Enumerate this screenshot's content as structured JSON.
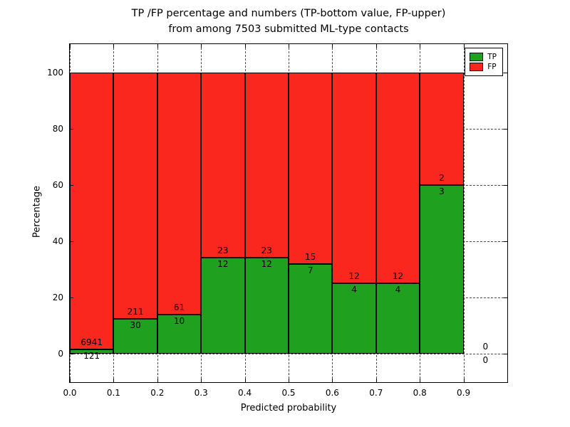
{
  "chart_data": {
    "type": "bar",
    "stacked": true,
    "title_line1": "TP /FP percentage and numbers (TP-bottom value, FP-upper)",
    "title_line2": "from among 7503 submitted ML-type contacts",
    "xlabel": "Predicted probability",
    "ylabel": "Percentage",
    "xlim": [
      0,
      1.0
    ],
    "ylim": [
      -10,
      110
    ],
    "grid": true,
    "legend_position": "upper-right",
    "legend": [
      {
        "label": "TP",
        "color": "#1fa11f"
      },
      {
        "label": "FP",
        "color": "#f9271d"
      }
    ],
    "x_ticks": {
      "values": [
        0.0,
        0.1,
        0.2,
        0.3,
        0.4,
        0.5,
        0.6,
        0.7,
        0.8,
        0.9
      ],
      "labels": [
        "0.0",
        "0.1",
        "0.2",
        "0.3",
        "0.4",
        "0.5",
        "0.6",
        "0.7",
        "0.8",
        "0.9"
      ]
    },
    "y_ticks": {
      "values": [
        0,
        20,
        40,
        60,
        80,
        100
      ],
      "labels": [
        "0",
        "20",
        "40",
        "60",
        "80",
        "100"
      ]
    },
    "bins": [
      {
        "x0": 0.0,
        "x1": 0.1,
        "tp": 121,
        "fp": 6941,
        "tp_pct": 1.7
      },
      {
        "x0": 0.1,
        "x1": 0.2,
        "tp": 30,
        "fp": 211,
        "tp_pct": 12.4
      },
      {
        "x0": 0.2,
        "x1": 0.3,
        "tp": 10,
        "fp": 61,
        "tp_pct": 14.1
      },
      {
        "x0": 0.3,
        "x1": 0.4,
        "tp": 12,
        "fp": 23,
        "tp_pct": 34.3
      },
      {
        "x0": 0.4,
        "x1": 0.5,
        "tp": 12,
        "fp": 23,
        "tp_pct": 34.3
      },
      {
        "x0": 0.5,
        "x1": 0.6,
        "tp": 7,
        "fp": 15,
        "tp_pct": 31.8
      },
      {
        "x0": 0.6,
        "x1": 0.7,
        "tp": 4,
        "fp": 12,
        "tp_pct": 25.0
      },
      {
        "x0": 0.7,
        "x1": 0.8,
        "tp": 4,
        "fp": 12,
        "tp_pct": 25.0
      },
      {
        "x0": 0.8,
        "x1": 0.9,
        "tp": 3,
        "fp": 2,
        "tp_pct": 60.0
      },
      {
        "x0": 0.9,
        "x1": 1.0,
        "tp": 0,
        "fp": 0,
        "tp_pct": null
      }
    ],
    "total_contacts": "7503"
  }
}
